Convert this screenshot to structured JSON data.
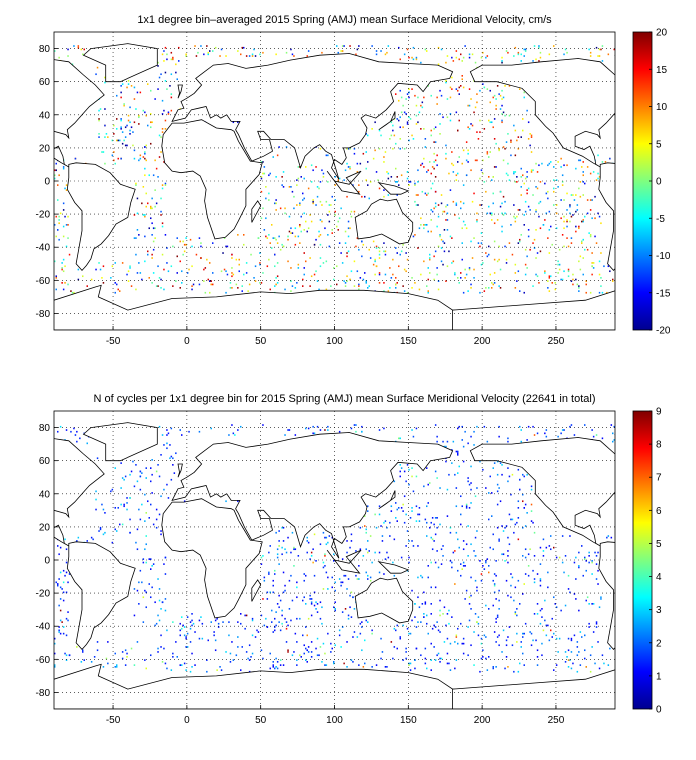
{
  "chart_data": [
    {
      "type": "heatmap",
      "title": "1x1 degree bin–averaged 2015 Spring (AMJ) mean Surface Meridional Velocity, cm/s",
      "xlabel": "",
      "ylabel": "",
      "xlim": [
        -90,
        290
      ],
      "ylim": [
        -90,
        90
      ],
      "xticks": [
        -50,
        0,
        50,
        100,
        150,
        200,
        250
      ],
      "yticks": [
        -80,
        -60,
        -40,
        -20,
        0,
        20,
        40,
        60,
        80
      ],
      "grid": "dotted",
      "colorbar": {
        "min": -20,
        "max": 20,
        "ticks": [
          -20,
          -15,
          -10,
          -5,
          0,
          5,
          10,
          15,
          20
        ],
        "colormap": "jet"
      },
      "field": "scattered bins of signed velocity covering most ocean basins"
    },
    {
      "type": "heatmap",
      "title": "N of cycles per 1x1 degree bin for 2015 Spring (AMJ) mean Surface Meridional Velocity (22641 in total)",
      "xlabel": "",
      "ylabel": "",
      "xlim": [
        -90,
        290
      ],
      "ylim": [
        -90,
        90
      ],
      "xticks": [
        -50,
        0,
        50,
        100,
        150,
        200,
        250
      ],
      "yticks": [
        -80,
        -60,
        -40,
        -20,
        0,
        20,
        40,
        60,
        80
      ],
      "grid": "dotted",
      "colorbar": {
        "min": 0,
        "max": 9,
        "ticks": [
          0,
          1,
          2,
          3,
          4,
          5,
          6,
          7,
          8,
          9
        ],
        "colormap": "jet"
      },
      "field": "bin counts mostly 1-3, a few hot spots near 8-9"
    }
  ],
  "colors": {
    "land_outline": "#000000",
    "grid": "#000000",
    "background": "#ffffff"
  }
}
